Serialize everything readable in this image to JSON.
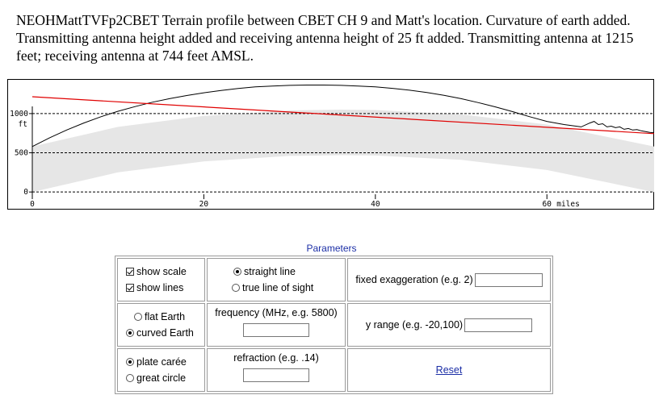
{
  "caption": "NEOHMattTVFp2CBET  Terrain profile between CBET CH 9 and Matt's location. Curvature of earth added. Transmitting antenna height added and receiving antenna height of 25 ft added. Transmitting antenna at 1215 feet; receiving antenna at 744 feet AMSL.",
  "chart_data": {
    "type": "line",
    "y_unit_label": "ft",
    "x_unit_label": "miles",
    "x_ticks": [
      0,
      20,
      40,
      60
    ],
    "y_ticks": [
      0,
      500,
      1000
    ],
    "xlim": [
      0,
      72.5
    ],
    "ylim": [
      -60,
      1400
    ],
    "grid": "dashed horizontal at y ticks",
    "series": [
      {
        "role": "terrain",
        "color": "#000000",
        "x": [
          0,
          2,
          4,
          6,
          8,
          10,
          12,
          14,
          16,
          18,
          20,
          22,
          24,
          26,
          28,
          30,
          32,
          34,
          36,
          38,
          40,
          42,
          44,
          46,
          48,
          50,
          52,
          54,
          56,
          58,
          60,
          62,
          64,
          65,
          65.5,
          66,
          66.5,
          67,
          67.5,
          68,
          68.5,
          69,
          69.5,
          70,
          70.5,
          71,
          71.5,
          72,
          72.5
        ],
        "y": [
          580,
          690,
          790,
          880,
          960,
          1030,
          1090,
          1145,
          1190,
          1230,
          1265,
          1295,
          1320,
          1340,
          1352,
          1360,
          1364,
          1364,
          1360,
          1352,
          1340,
          1322,
          1298,
          1268,
          1232,
          1190,
          1140,
          1085,
          1025,
          960,
          900,
          860,
          830,
          880,
          900,
          860,
          870,
          830,
          840,
          820,
          830,
          800,
          810,
          790,
          795,
          780,
          770,
          760,
          755
        ]
      },
      {
        "role": "line-of-sight",
        "color": "#e00000",
        "x": [
          0,
          72.5
        ],
        "y": [
          1215,
          744
        ]
      }
    ],
    "earth_bulge_band": {
      "color": "#e6e6e6",
      "x": [
        0,
        10,
        20,
        30,
        36,
        40,
        50,
        60,
        72.5
      ],
      "upper": [
        580,
        830,
        970,
        1040,
        1050,
        1045,
        990,
        860,
        580
      ],
      "lower": [
        0,
        250,
        390,
        460,
        470,
        465,
        410,
        280,
        0
      ]
    }
  },
  "params": {
    "title": "Parameters",
    "show_scale": "show scale",
    "show_lines": "show lines",
    "straight_line": "straight line",
    "true_line_of_sight": "true line of sight",
    "fixed_exaggeration": "fixed exaggeration (e.g. 2)",
    "flat_earth": "flat Earth",
    "curved_earth": "curved Earth",
    "frequency": "frequency (MHz, e.g. 5800)",
    "y_range": "y range (e.g. -20,100)",
    "plate_caree": "plate carée",
    "great_circle": "great circle",
    "refraction": "refraction (e.g. .14)",
    "reset": "Reset"
  }
}
